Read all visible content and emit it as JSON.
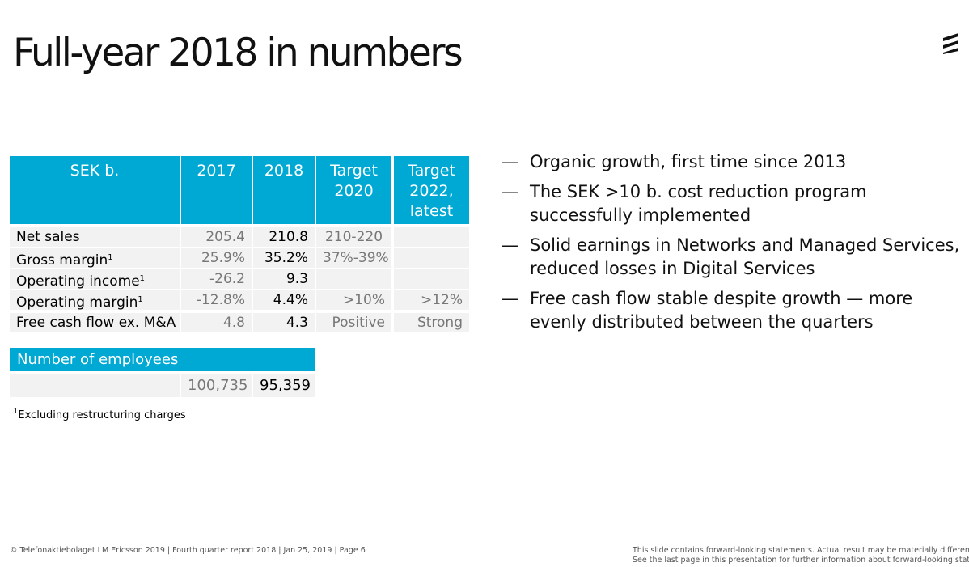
{
  "title": "Full-year 2018 in numbers",
  "colors": {
    "accent": "#00a9d4",
    "row_bg": "#f2f2f2"
  },
  "logo": "ericsson-logo",
  "table": {
    "headers": [
      "SEK b.",
      "2017",
      "2018",
      "Target 2020",
      "Target 2022, latest"
    ],
    "rows": [
      {
        "label": "Net sales",
        "note": "",
        "v2017": "205.4",
        "v2018": "210.8",
        "t2020": "210-220",
        "t2022": ""
      },
      {
        "label": "Gross margin",
        "note": "1",
        "v2017": "25.9%",
        "v2018": "35.2%",
        "t2020": "37%-39%",
        "t2022": ""
      },
      {
        "label": "Operating income",
        "note": "1",
        "v2017": "-26.2",
        "v2018": "9.3",
        "t2020": "",
        "t2022": ""
      },
      {
        "label": "Operating margin",
        "note": "1",
        "v2017": "-12.8%",
        "v2018": "4.4%",
        "t2020": ">10%",
        "t2022": ">12%"
      },
      {
        "label": "Free cash flow ex. M&A",
        "note": "",
        "v2017": "4.8",
        "v2018": "4.3",
        "t2020": "Positive",
        "t2022": "Strong"
      }
    ]
  },
  "employees": {
    "header": "Number of employees",
    "v2017": "100,735",
    "v2018": "95,359"
  },
  "footnote": {
    "mark": "1",
    "text": "Excluding restructuring charges"
  },
  "bullets": [
    "Organic growth, first time since 2013",
    "The SEK >10 b. cost reduction program successfully implemented",
    "Solid earnings in Networks and Managed Services, reduced losses in Digital Services",
    "Free cash flow stable despite growth — more evenly distributed between the quarters"
  ],
  "bullet_marker": "—",
  "footer": {
    "left": "© Telefonaktiebolaget LM Ericsson 2019  |  Fourth quarter report 2018  |  Jan 25, 2019  |  Page 6",
    "right1": "This slide contains forward-looking statements. Actual result may be materially different.",
    "right2": "See the last page in this presentation for further information about forward-looking statem"
  }
}
